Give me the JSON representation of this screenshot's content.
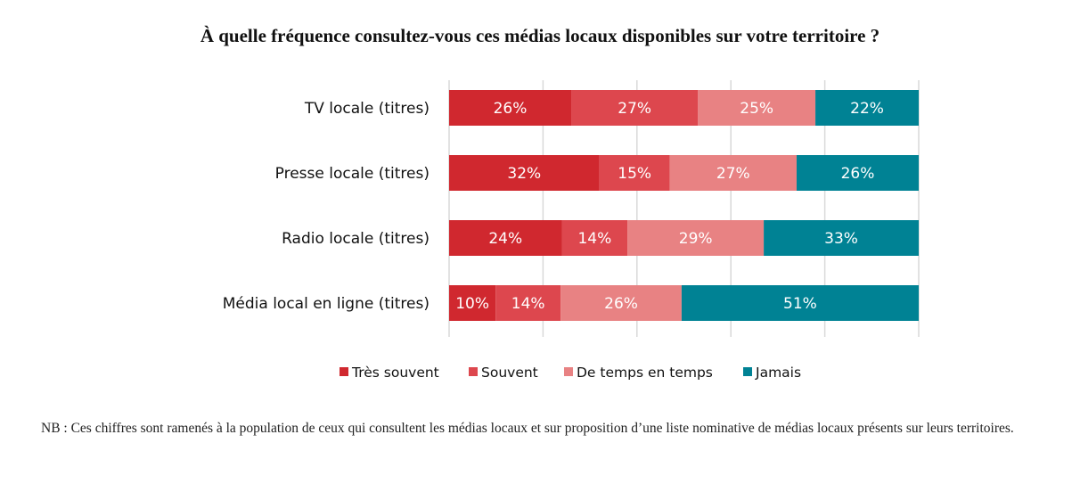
{
  "chart_data": {
    "type": "bar",
    "orientation": "horizontal",
    "stacked": true,
    "title": "À quelle fréquence consultez-vous ces médias locaux disponibles sur votre territoire ?",
    "categories": [
      "TV locale (titres)",
      "Presse locale  (titres)",
      "Radio locale  (titres)",
      "Média local en ligne  (titres)"
    ],
    "series": [
      {
        "name": "Très souvent",
        "color": "#D0282F",
        "values": [
          26,
          32,
          24,
          10
        ]
      },
      {
        "name": "Souvent",
        "color": "#DD474E",
        "values": [
          27,
          15,
          14,
          14
        ]
      },
      {
        "name": "De temps en temps",
        "color": "#E88283",
        "values": [
          25,
          27,
          29,
          26
        ]
      },
      {
        "name": "Jamais",
        "color": "#008294",
        "values": [
          22,
          26,
          33,
          51
        ]
      }
    ],
    "xlim": [
      0,
      100
    ],
    "grid": true,
    "legend": "bottom",
    "value_suffix": "%"
  },
  "note": "NB : Ces chiffres sont ramenés à la population de ceux qui consultent les médias locaux et sur proposition d’une liste nominative de médias locaux présents sur leurs territoires."
}
